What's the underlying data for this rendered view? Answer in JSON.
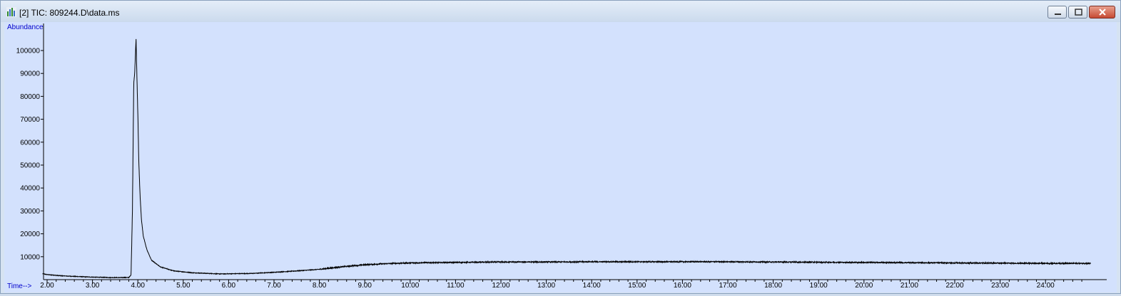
{
  "window": {
    "title": "[2] TIC: 809244.D\\data.ms"
  },
  "colors": {
    "plot_bg": "#d3e1fd",
    "trace": "#000000",
    "axis_label": "#0000cc"
  },
  "chart_data": {
    "type": "line",
    "title": "[2] TIC: 809244.D\\data.ms",
    "ylabel": "Abundance",
    "xlabel": "Time-->",
    "xlim": [
      1.9,
      25.0
    ],
    "ylim": [
      0,
      106000
    ],
    "grid": false,
    "x_ticks": [
      2,
      3,
      4,
      5,
      6,
      7,
      8,
      9,
      10,
      11,
      12,
      13,
      14,
      15,
      16,
      17,
      18,
      19,
      20,
      21,
      22,
      23,
      24
    ],
    "x_tick_labels": [
      "2.00",
      "3.00",
      "4.00",
      "5.00",
      "6.00",
      "7.00",
      "8.00",
      "9.00",
      "10.00",
      "11.00",
      "12.00",
      "13.00",
      "14.00",
      "15.00",
      "16.00",
      "17.00",
      "18.00",
      "19.00",
      "20.00",
      "21.00",
      "22.00",
      "23.00",
      "24.00"
    ],
    "y_ticks": [
      10000,
      20000,
      30000,
      40000,
      50000,
      60000,
      70000,
      80000,
      90000,
      100000
    ],
    "y_tick_labels": [
      "10000",
      "20000",
      "30000",
      "40000",
      "50000",
      "60000",
      "70000",
      "80000",
      "90000",
      "100000"
    ],
    "series": [
      {
        "name": "TIC",
        "x": [
          1.9,
          2.0,
          2.3,
          2.6,
          3.0,
          3.4,
          3.8,
          3.85,
          3.88,
          3.91,
          3.93,
          3.96,
          3.98,
          4.0,
          4.02,
          4.05,
          4.08,
          4.12,
          4.2,
          4.3,
          4.5,
          4.8,
          5.2,
          5.8,
          6.5,
          7.0,
          7.5,
          8.0,
          8.5,
          9.0,
          9.5,
          10.0,
          11.0,
          12.0,
          13.0,
          14.0,
          15.0,
          16.0,
          17.0,
          18.0,
          19.0,
          20.0,
          21.0,
          22.0,
          23.0,
          24.0,
          25.0
        ],
        "values": [
          2600,
          2200,
          1700,
          1400,
          1100,
          900,
          900,
          2000,
          30000,
          86000,
          90000,
          105000,
          88000,
          72000,
          52000,
          36000,
          26000,
          19000,
          13000,
          8500,
          5500,
          3800,
          3000,
          2500,
          2700,
          3200,
          3800,
          4500,
          5600,
          6500,
          7000,
          7300,
          7500,
          7700,
          7700,
          7800,
          7800,
          7800,
          7800,
          7700,
          7600,
          7500,
          7400,
          7300,
          7200,
          7100,
          7100
        ]
      }
    ]
  }
}
